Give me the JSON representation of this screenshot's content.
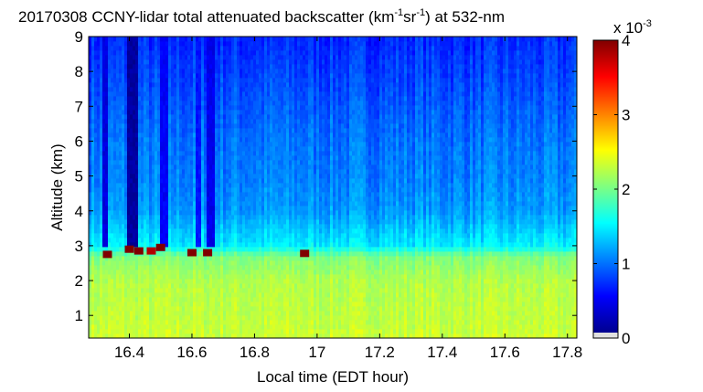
{
  "chart_data": {
    "type": "heatmap",
    "title": {
      "prefix": "20170308 CCNY-lidar total attenuated backscatter (km",
      "sup1": "-1",
      "mid": "sr",
      "sup2": "-1",
      "suffix": ") at 532-nm"
    },
    "xlabel": "Local time (EDT hour)",
    "ylabel": "Altitude (km)",
    "xlim": [
      16.27,
      17.83
    ],
    "ylim": [
      0.35,
      9.0
    ],
    "x_ticks": [
      "16.4",
      "16.6",
      "16.8",
      "17",
      "17.2",
      "17.4",
      "17.6",
      "17.8"
    ],
    "y_ticks": [
      "1",
      "2",
      "3",
      "4",
      "5",
      "6",
      "7",
      "8",
      "9"
    ],
    "colorbar": {
      "range": [
        0,
        4
      ],
      "ticks": [
        "0",
        "1",
        "2",
        "3",
        "4"
      ],
      "exponent_label": {
        "base": "x 10",
        "exp": "-3"
      },
      "colormap": "jet"
    },
    "profile": [
      {
        "altitude_km": 0.4,
        "value": 2.3
      },
      {
        "altitude_km": 1.0,
        "value": 2.25
      },
      {
        "altitude_km": 2.0,
        "value": 2.2
      },
      {
        "altitude_km": 2.7,
        "value": 2.0
      },
      {
        "altitude_km": 3.0,
        "value": 1.45
      },
      {
        "altitude_km": 4.0,
        "value": 1.1
      },
      {
        "altitude_km": 5.0,
        "value": 1.0
      },
      {
        "altitude_km": 6.0,
        "value": 0.95
      },
      {
        "altitude_km": 7.0,
        "value": 0.85
      },
      {
        "altitude_km": 8.0,
        "value": 0.75
      },
      {
        "altitude_km": 9.0,
        "value": 0.65
      }
    ],
    "cloud_features": [
      {
        "time_hr": 16.33,
        "altitude_km": 2.75,
        "value": 4.0
      },
      {
        "time_hr": 16.4,
        "altitude_km": 2.9,
        "value": 4.0
      },
      {
        "time_hr": 16.43,
        "altitude_km": 2.85,
        "value": 4.0
      },
      {
        "time_hr": 16.47,
        "altitude_km": 2.85,
        "value": 3.8
      },
      {
        "time_hr": 16.5,
        "altitude_km": 2.95,
        "value": 4.0
      },
      {
        "time_hr": 16.6,
        "altitude_km": 2.8,
        "value": 4.0
      },
      {
        "time_hr": 16.65,
        "altitude_km": 2.8,
        "value": 4.0
      },
      {
        "time_hr": 16.96,
        "altitude_km": 2.78,
        "value": 4.0
      }
    ],
    "low_signal_columns": [
      {
        "time_hr": 16.32,
        "width_hr": 0.02,
        "from_km": 3.0,
        "value": 0.3
      },
      {
        "time_hr": 16.41,
        "width_hr": 0.03,
        "from_km": 3.0,
        "value": 0.05
      },
      {
        "time_hr": 16.51,
        "width_hr": 0.02,
        "from_km": 3.0,
        "value": 0.4
      },
      {
        "time_hr": 16.62,
        "width_hr": 0.015,
        "from_km": 3.0,
        "value": 0.5
      },
      {
        "time_hr": 16.66,
        "width_hr": 0.02,
        "from_km": 3.0,
        "value": 0.35
      }
    ]
  }
}
